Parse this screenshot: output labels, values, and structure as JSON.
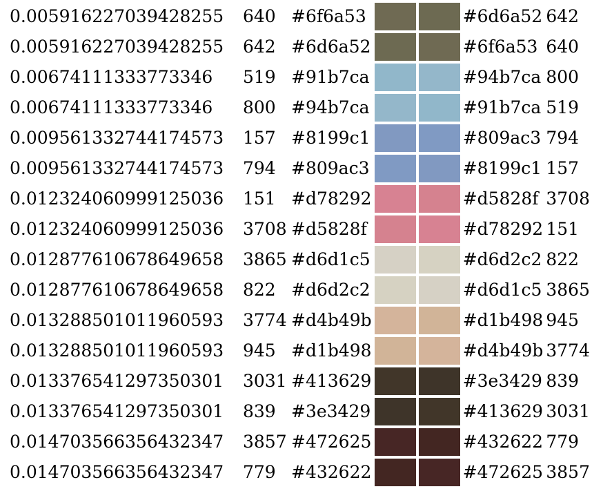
{
  "rows": [
    {
      "distance": "0.005916227039428255",
      "index_a": "640",
      "hex_a": "#6f6a53",
      "hex_b": "#6d6a52",
      "index_b": "642"
    },
    {
      "distance": "0.005916227039428255",
      "index_a": "642",
      "hex_a": "#6d6a52",
      "hex_b": "#6f6a53",
      "index_b": "640"
    },
    {
      "distance": "0.00674111333773346",
      "index_a": "519",
      "hex_a": "#91b7ca",
      "hex_b": "#94b7ca",
      "index_b": "800"
    },
    {
      "distance": "0.00674111333773346",
      "index_a": "800",
      "hex_a": "#94b7ca",
      "hex_b": "#91b7ca",
      "index_b": "519"
    },
    {
      "distance": "0.009561332744174573",
      "index_a": "157",
      "hex_a": "#8199c1",
      "hex_b": "#809ac3",
      "index_b": "794"
    },
    {
      "distance": "0.009561332744174573",
      "index_a": "794",
      "hex_a": "#809ac3",
      "hex_b": "#8199c1",
      "index_b": "157"
    },
    {
      "distance": "0.012324060999125036",
      "index_a": "151",
      "hex_a": "#d78292",
      "hex_b": "#d5828f",
      "index_b": "3708"
    },
    {
      "distance": "0.012324060999125036",
      "index_a": "3708",
      "hex_a": "#d5828f",
      "hex_b": "#d78292",
      "index_b": "151"
    },
    {
      "distance": "0.012877610678649658",
      "index_a": "3865",
      "hex_a": "#d6d1c5",
      "hex_b": "#d6d2c2",
      "index_b": "822"
    },
    {
      "distance": "0.012877610678649658",
      "index_a": "822",
      "hex_a": "#d6d2c2",
      "hex_b": "#d6d1c5",
      "index_b": "3865"
    },
    {
      "distance": "0.013288501011960593",
      "index_a": "3774",
      "hex_a": "#d4b49b",
      "hex_b": "#d1b498",
      "index_b": "945"
    },
    {
      "distance": "0.013288501011960593",
      "index_a": "945",
      "hex_a": "#d1b498",
      "hex_b": "#d4b49b",
      "index_b": "3774"
    },
    {
      "distance": "0.013376541297350301",
      "index_a": "3031",
      "hex_a": "#413629",
      "hex_b": "#3e3429",
      "index_b": "839"
    },
    {
      "distance": "0.013376541297350301",
      "index_a": "839",
      "hex_a": "#3e3429",
      "hex_b": "#413629",
      "index_b": "3031"
    },
    {
      "distance": "0.014703566356432347",
      "index_a": "3857",
      "hex_a": "#472625",
      "hex_b": "#432622",
      "index_b": "779"
    },
    {
      "distance": "0.014703566356432347",
      "index_a": "779",
      "hex_a": "#432622",
      "hex_b": "#472625",
      "index_b": "3857"
    }
  ],
  "swatch_colors": [
    [
      "#6f6a53",
      "#6d6a52"
    ],
    [
      "#6d6a52",
      "#6f6a53"
    ],
    [
      "#91b7ca",
      "#94b7ca"
    ],
    [
      "#94b7ca",
      "#91b7ca"
    ],
    [
      "#8199c1",
      "#809ac3"
    ],
    [
      "#809ac3",
      "#8199c1"
    ],
    [
      "#d78292",
      "#d5828f"
    ],
    [
      "#d5828f",
      "#d78292"
    ],
    [
      "#d6d1c5",
      "#d6d2c2"
    ],
    [
      "#d6d2c2",
      "#d6d1c5"
    ],
    [
      "#d4b49b",
      "#d1b498"
    ],
    [
      "#d1b498",
      "#d4b49b"
    ],
    [
      "#413629",
      "#3e3429"
    ],
    [
      "#3e3429",
      "#413629"
    ],
    [
      "#472625",
      "#432622"
    ],
    [
      "#432622",
      "#472625"
    ]
  ]
}
